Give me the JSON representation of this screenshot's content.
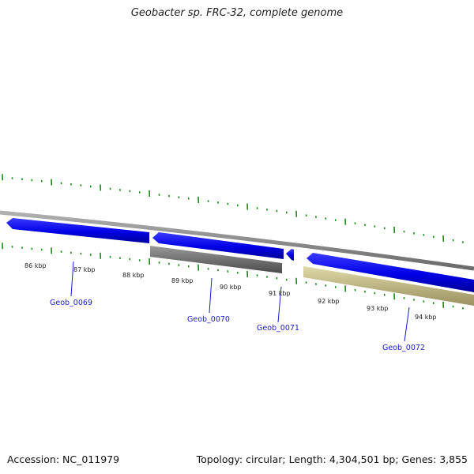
{
  "title": "Geobacter sp. FRC-32, complete genome",
  "footer": {
    "accession": "Accession: NC_011979",
    "summary": "Topology: circular; Length: 4,304,501 bp; Genes: 3,855"
  },
  "scale_labels": [
    "86 kbp",
    "87 kbp",
    "88 kbp",
    "89 kbp",
    "90 kbp",
    "91 kbp",
    "92 kbp",
    "93 kbp",
    "94 kbp"
  ],
  "genes": [
    {
      "label": "Geob_0069",
      "strand": "reverse",
      "color": "#0000ee"
    },
    {
      "label": "Geob_0070",
      "strand": "reverse",
      "color": "#0000ee",
      "product_color": "#707070"
    },
    {
      "label": "Geob_0071",
      "strand": "reverse",
      "color": "#0000ee"
    },
    {
      "label": "Geob_0072",
      "strand": "reverse",
      "color": "#0000ee",
      "product_color": "#c8c08a"
    }
  ],
  "colors": {
    "backbone": "#8a8a8a",
    "tick": "#1a8a1a",
    "cds": "#0000ee",
    "label": "#1a1acc"
  }
}
